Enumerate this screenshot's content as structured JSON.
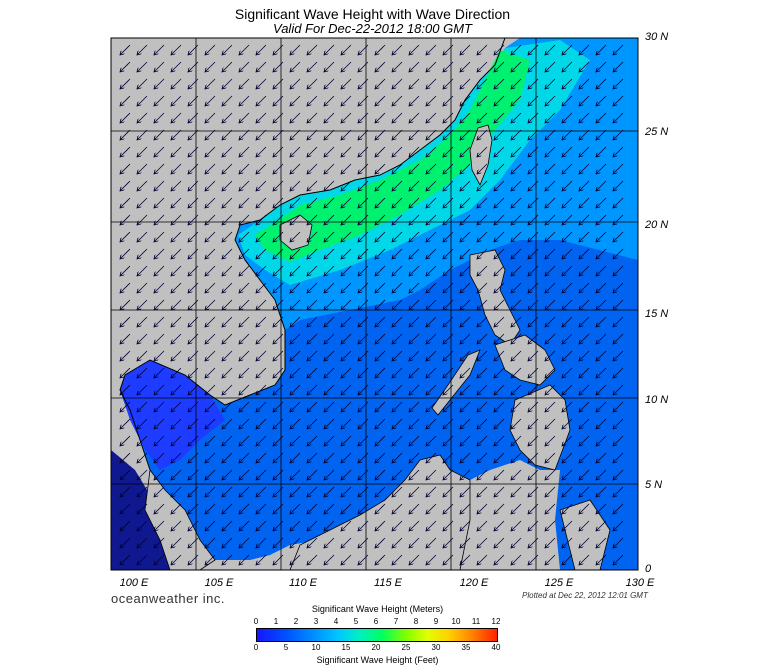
{
  "header": {
    "title": "Significant Wave Height with Wave Direction",
    "subtitle": "Valid For Dec-22-2012 18:00 GMT"
  },
  "map": {
    "region": "South China Sea",
    "lon_range": [
      100,
      130
    ],
    "lat_range": [
      0,
      30
    ],
    "lat_labels": [
      "30 N",
      "25 N",
      "20 N",
      "15 N",
      "10 N",
      "5 N",
      "0"
    ],
    "lon_labels": [
      "100 E",
      "105 E",
      "110 E",
      "115 E",
      "120 E",
      "125 E",
      "130 E"
    ],
    "land_color": "#c0c0c0",
    "prevailing_wave_direction": "from northeast (arrows pointing southwest)"
  },
  "footer": {
    "brand": "oceanweather inc.",
    "plotted": "Plotted at Dec 22, 2012 12:01 GMT"
  },
  "colorbar": {
    "title_meters": "Significant Wave Height (Meters)",
    "title_feet": "Significant Wave Height (Feet)",
    "meter_ticks": [
      "0",
      "1",
      "2",
      "3",
      "4",
      "5",
      "6",
      "7",
      "8",
      "9",
      "10",
      "11",
      "12"
    ],
    "feet_ticks": [
      "0",
      "5",
      "10",
      "15",
      "20",
      "25",
      "30",
      "35",
      "40"
    ],
    "colors": [
      "#1616ff",
      "#0050ff",
      "#0090ff",
      "#00c8ff",
      "#00f0c0",
      "#00ff60",
      "#80ff00",
      "#e0ff00",
      "#ffd000",
      "#ff8000",
      "#ff2000"
    ]
  }
}
